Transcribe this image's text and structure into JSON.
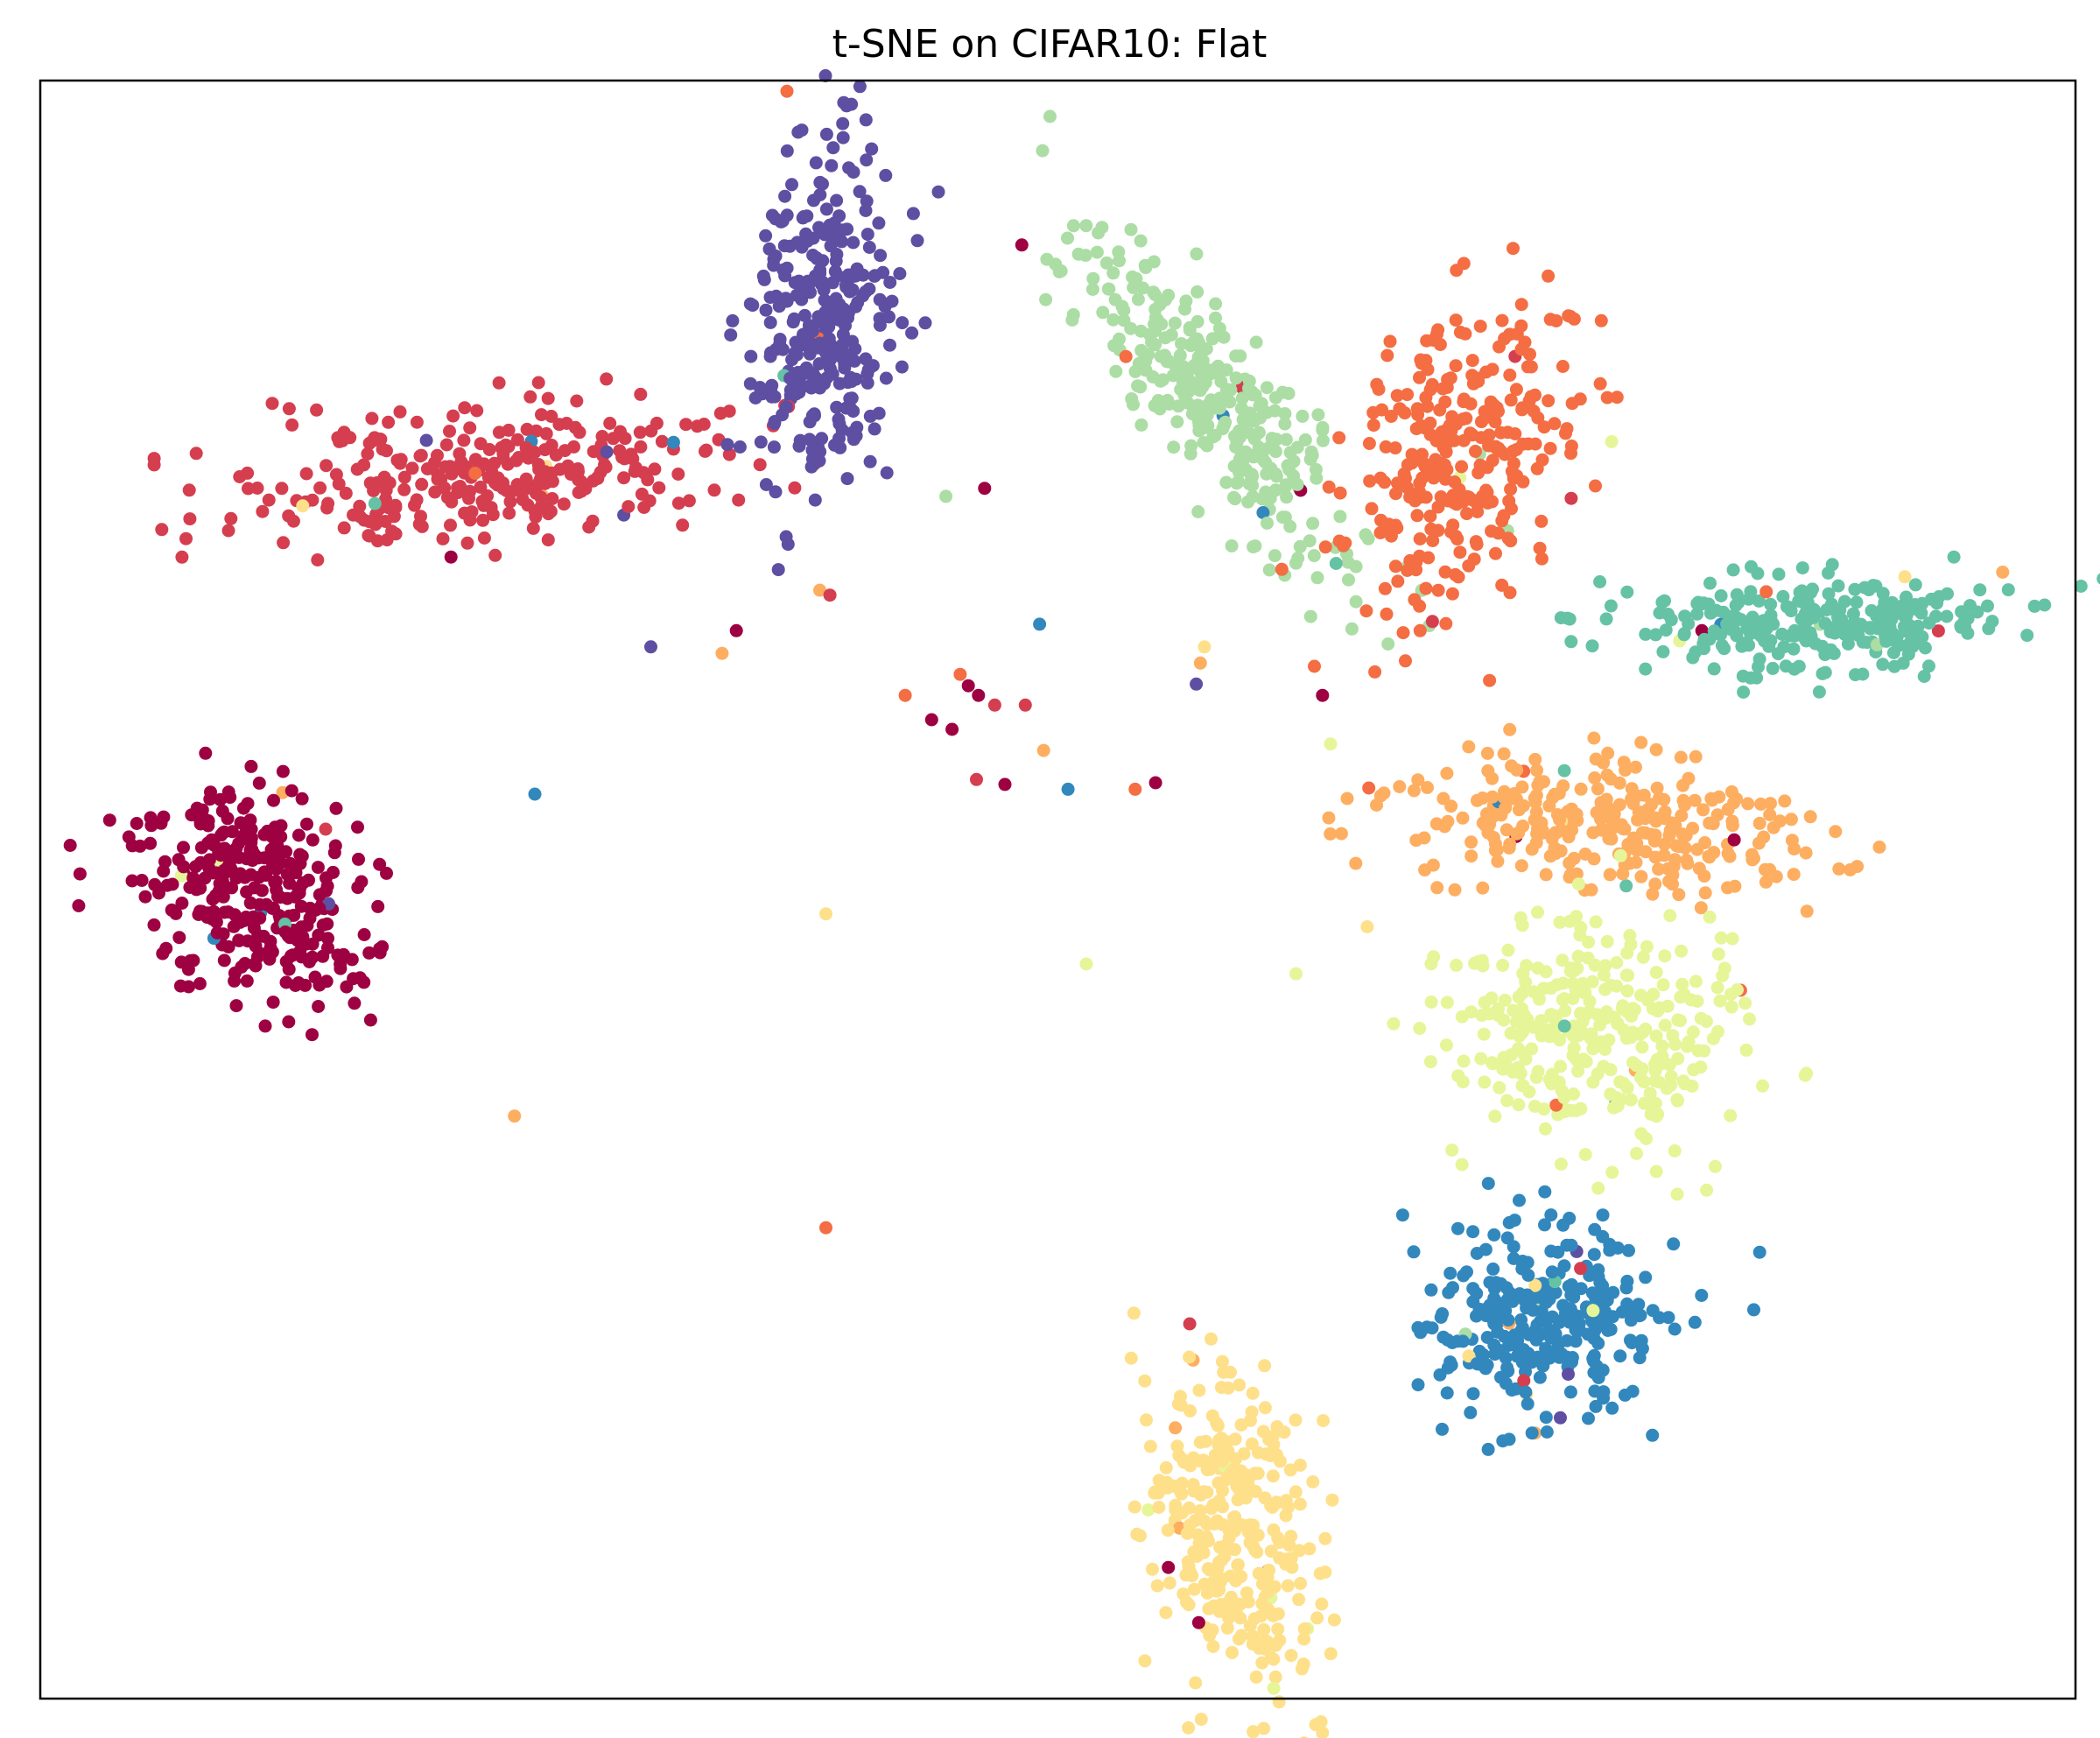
{
  "chart_data": {
    "type": "scatter",
    "title": "t-SNE on CIFAR10: Flat",
    "xlabel": "",
    "ylabel": "",
    "xlim": [
      0,
      100
    ],
    "ylim": [
      0,
      100
    ],
    "grid": false,
    "ticks": false,
    "legend": "none",
    "colormap": "Spectral",
    "palette": [
      "#9e0142",
      "#d53e4f",
      "#f46d43",
      "#fdae61",
      "#fee08b",
      "#e6f598",
      "#abdda4",
      "#66c2a5",
      "#3288bd",
      "#5e4fa2"
    ],
    "clusters": [
      {
        "color_index": 0,
        "center": [
          10.5,
          49.5
        ],
        "spread": [
          4.8,
          6.0
        ],
        "angle": 38,
        "count": 320
      },
      {
        "color_index": 1,
        "center": [
          22.0,
          75.5
        ],
        "spread": [
          11.0,
          3.6
        ],
        "angle": 6,
        "count": 320
      },
      {
        "color_index": 9,
        "center": [
          38.5,
          85.0
        ],
        "spread": [
          3.2,
          10.0
        ],
        "angle": -4,
        "count": 320
      },
      {
        "color_index": 6,
        "center": [
          57.5,
          80.5
        ],
        "spread": [
          2.8,
          12.0
        ],
        "angle": 32,
        "count": 320
      },
      {
        "color_index": 2,
        "center": [
          70.0,
          77.0
        ],
        "spread": [
          4.6,
          9.0
        ],
        "angle": -12,
        "count": 300
      },
      {
        "color_index": 7,
        "center": [
          87.0,
          66.5
        ],
        "spread": [
          9.0,
          2.8
        ],
        "angle": 0,
        "count": 280
      },
      {
        "color_index": 3,
        "center": [
          77.0,
          54.0
        ],
        "spread": [
          9.0,
          3.8
        ],
        "angle": -4,
        "count": 300
      },
      {
        "color_index": 5,
        "center": [
          76.5,
          41.0
        ],
        "spread": [
          6.5,
          6.5
        ],
        "angle": -32,
        "count": 320
      },
      {
        "color_index": 8,
        "center": [
          74.0,
          23.5
        ],
        "spread": [
          5.8,
          5.4
        ],
        "angle": -22,
        "count": 300
      },
      {
        "color_index": 4,
        "center": [
          58.5,
          10.5
        ],
        "spread": [
          3.6,
          9.0
        ],
        "angle": 10,
        "count": 320
      }
    ],
    "outliers": [
      {
        "x": 34.2,
        "y": 66.0,
        "c": 0
      },
      {
        "x": 33.5,
        "y": 64.6,
        "c": 3
      },
      {
        "x": 38.3,
        "y": 68.5,
        "c": 3
      },
      {
        "x": 44.5,
        "y": 74.3,
        "c": 6
      },
      {
        "x": 46.4,
        "y": 74.8,
        "c": 0
      },
      {
        "x": 38.8,
        "y": 68.2,
        "c": 1
      },
      {
        "x": 30.0,
        "y": 65.0,
        "c": 9
      },
      {
        "x": 46.1,
        "y": 62.0,
        "c": 0
      },
      {
        "x": 45.6,
        "y": 62.6,
        "c": 0
      },
      {
        "x": 45.2,
        "y": 63.3,
        "c": 2
      },
      {
        "x": 46.9,
        "y": 61.4,
        "c": 1
      },
      {
        "x": 48.4,
        "y": 61.4,
        "c": 1
      },
      {
        "x": 49.1,
        "y": 66.4,
        "c": 8
      },
      {
        "x": 42.5,
        "y": 62.0,
        "c": 2
      },
      {
        "x": 43.8,
        "y": 60.5,
        "c": 0
      },
      {
        "x": 44.8,
        "y": 59.9,
        "c": 0
      },
      {
        "x": 49.3,
        "y": 58.6,
        "c": 3
      },
      {
        "x": 50.5,
        "y": 56.2,
        "c": 8
      },
      {
        "x": 46.0,
        "y": 56.8,
        "c": 1
      },
      {
        "x": 47.4,
        "y": 56.5,
        "c": 0
      },
      {
        "x": 24.3,
        "y": 55.9,
        "c": 8
      },
      {
        "x": 53.8,
        "y": 56.2,
        "c": 2
      },
      {
        "x": 54.8,
        "y": 56.6,
        "c": 0
      },
      {
        "x": 38.6,
        "y": 48.5,
        "c": 4
      },
      {
        "x": 51.4,
        "y": 45.4,
        "c": 5
      },
      {
        "x": 61.7,
        "y": 44.8,
        "c": 5
      },
      {
        "x": 23.3,
        "y": 36.0,
        "c": 3
      },
      {
        "x": 38.6,
        "y": 29.1,
        "c": 2
      },
      {
        "x": 57.2,
        "y": 65.0,
        "c": 4
      },
      {
        "x": 57.0,
        "y": 64.0,
        "c": 3
      },
      {
        "x": 56.8,
        "y": 62.7,
        "c": 9
      },
      {
        "x": 63.4,
        "y": 59.0,
        "c": 5
      },
      {
        "x": 65.2,
        "y": 47.7,
        "c": 4
      },
      {
        "x": 63.0,
        "y": 62.0,
        "c": 0
      },
      {
        "x": 62.6,
        "y": 63.8,
        "c": 2
      }
    ]
  }
}
